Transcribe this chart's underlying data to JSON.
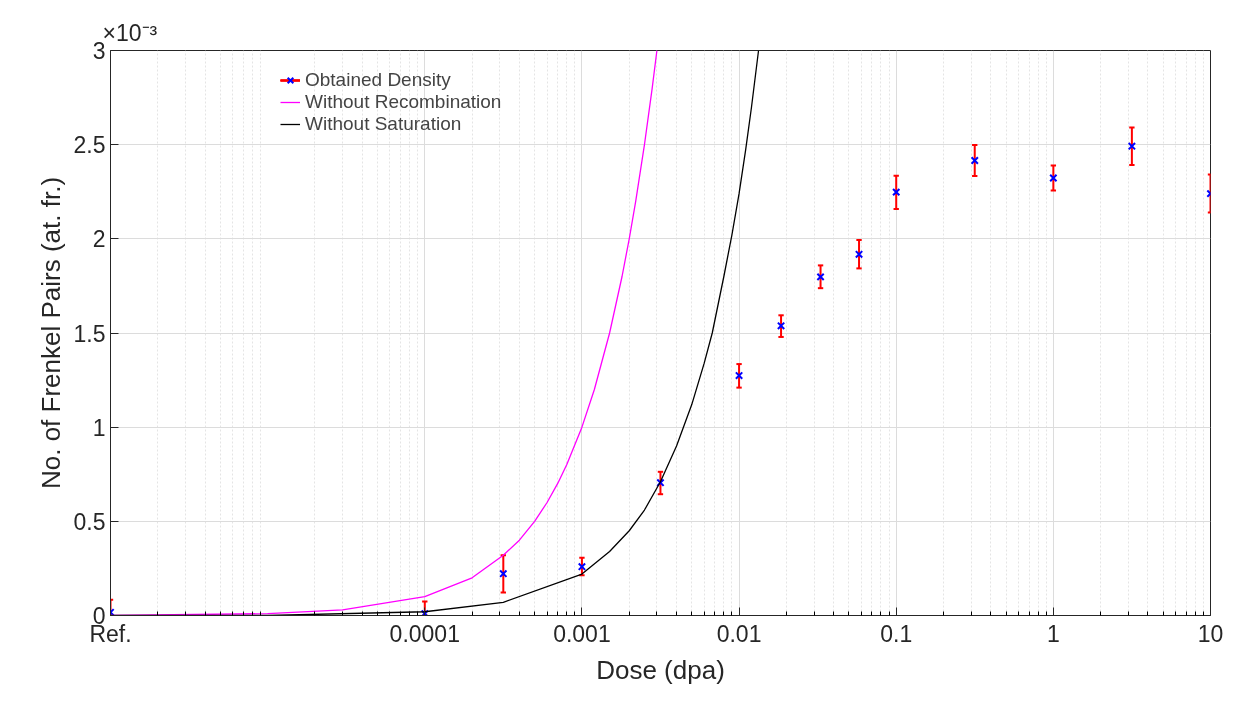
{
  "chart_data": {
    "type": "scatter",
    "xlabel": "Dose (dpa)",
    "ylabel": "No. of Frenkel Pairs (at. fr.)",
    "annotations": [
      "×10⁻³"
    ],
    "log": "x",
    "grid": true,
    "legend": "top left",
    "xlim": [
      1e-06,
      10
    ],
    "ylim": [
      0,
      3
    ],
    "xticks": [
      {
        "value": 1e-06,
        "label": "Ref."
      },
      0.0001,
      0.001,
      0.01,
      0.1,
      1,
      10
    ],
    "yticks": [
      0,
      0.5,
      1,
      1.5,
      2,
      2.5,
      3
    ],
    "series": [
      {
        "name": "Obtained Density",
        "marker": "cross",
        "color": "#0000ff",
        "x": [
          1e-06,
          0.0001,
          0.000316,
          0.001,
          0.00316,
          0.01,
          0.0185,
          0.033,
          0.058,
          0.1,
          0.316,
          1,
          3.16,
          10
        ],
        "values": [
          0.017,
          0.01,
          0.222,
          0.259,
          0.705,
          1.274,
          1.538,
          1.798,
          1.918,
          2.248,
          2.416,
          2.323,
          2.492,
          2.24
        ],
        "errors": [
          [
            0,
            0.084
          ],
          [
            0,
            0.075
          ],
          [
            0.122,
            0.32
          ],
          [
            0.214,
            0.307
          ],
          [
            0.644,
            0.763
          ],
          [
            1.21,
            1.335
          ],
          [
            1.479,
            1.594
          ],
          [
            1.738,
            1.859
          ],
          [
            1.843,
            1.994
          ],
          [
            2.158,
            2.335
          ],
          [
            2.333,
            2.498
          ],
          [
            2.256,
            2.39
          ],
          [
            2.392,
            2.591
          ],
          [
            2.14,
            2.341
          ]
        ]
      },
      {
        "name": "Without Recombination",
        "type": "line",
        "color": "#ff00ff",
        "x": [
          1e-06,
          1e-05,
          3e-05,
          0.0001,
          0.0002,
          0.000316,
          0.0004,
          0.0005,
          0.0006,
          0.0007,
          0.0008,
          0.001,
          0.0012,
          0.0015,
          0.0018,
          0.002,
          0.0022,
          0.0025,
          0.0028,
          0.003
        ],
        "values": [
          0.0,
          0.01,
          0.03,
          0.1,
          0.2,
          0.32,
          0.4,
          0.5,
          0.6,
          0.7,
          0.8,
          1.0,
          1.2,
          1.5,
          1.8,
          2.0,
          2.2,
          2.5,
          2.8,
          3.0
        ]
      },
      {
        "name": "Without Saturation",
        "type": "line",
        "color": "#000000",
        "x": [
          1e-06,
          1e-05,
          0.0001,
          0.000316,
          0.001,
          0.0015,
          0.002,
          0.0025,
          0.00316,
          0.004,
          0.005,
          0.006,
          0.00675,
          0.008,
          0.009,
          0.01,
          0.011,
          0.012,
          0.0133
        ],
        "values": [
          0.0,
          0.0,
          0.02,
          0.07,
          0.22,
          0.34,
          0.45,
          0.56,
          0.71,
          0.9,
          1.12,
          1.34,
          1.5,
          1.8,
          2.02,
          2.24,
          2.47,
          2.7,
          3.0
        ]
      }
    ]
  }
}
